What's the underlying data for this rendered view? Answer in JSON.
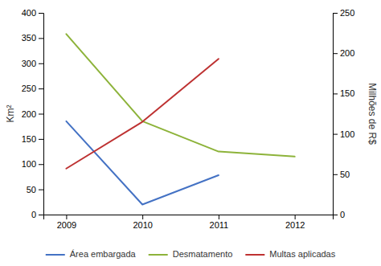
{
  "chart_data": {
    "type": "line",
    "x": [
      2009,
      2010,
      2011,
      2012
    ],
    "xlim": [
      2008.7,
      2012.5
    ],
    "xticks": [
      2009,
      2010,
      2011,
      2012
    ],
    "ylabel": "Km²",
    "ylim": [
      0,
      400
    ],
    "yticks": [
      0,
      50,
      100,
      150,
      200,
      250,
      300,
      350,
      400
    ],
    "y2label": "Milhões de R$",
    "y2lim": [
      0,
      250
    ],
    "y2ticks": [
      0,
      50,
      100,
      150,
      200,
      250
    ],
    "grid": false,
    "legend": "bottom",
    "series": [
      {
        "name": "Área embargada",
        "color": "#4472C4",
        "values": [
          185,
          20,
          78,
          null
        ]
      },
      {
        "name": "Desmatamento",
        "color": "#8DB33A",
        "values": [
          358,
          185,
          125,
          115
        ]
      },
      {
        "name": "Multas aplicadas",
        "color": "#BE3232",
        "values": [
          57,
          115,
          193,
          null
        ],
        "axis": "y2"
      }
    ]
  }
}
